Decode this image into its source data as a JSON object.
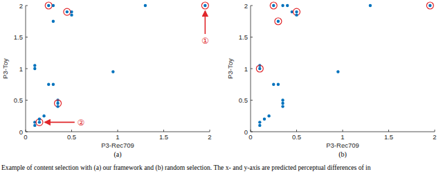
{
  "chart_data": [
    {
      "type": "scatter",
      "title": "(a)",
      "x_label": "P3-Rec709",
      "y_label": "P3-Toy",
      "x": [
        0.1,
        0.1,
        0.25,
        0.3,
        0.25,
        0.3,
        0.3,
        0.45,
        0.5,
        0.5,
        0.95,
        1.3,
        1.95,
        0.35,
        0.35,
        0.35,
        0.1,
        0.1,
        0.15,
        0.2,
        0.15
      ],
      "y": [
        1.05,
        1.0,
        0.75,
        0.75,
        2.0,
        2.0,
        1.75,
        1.9,
        1.9,
        1.85,
        0.95,
        2.0,
        2.0,
        0.5,
        0.45,
        0.4,
        0.15,
        0.1,
        0.15,
        0.25,
        0.2
      ],
      "selected": [
        false,
        false,
        false,
        false,
        true,
        false,
        false,
        true,
        false,
        false,
        false,
        false,
        true,
        false,
        true,
        false,
        false,
        false,
        true,
        false,
        false
      ],
      "color": "#0072bd",
      "marker": "dot",
      "xlim": [
        0,
        2
      ],
      "ylim": [
        0,
        2
      ],
      "xticks": [
        0,
        0.5,
        1,
        1.5,
        2
      ],
      "yticks": [
        0,
        0.5,
        1,
        1.5,
        2
      ],
      "annotations": [
        {
          "text": "①",
          "from": [
            1.95,
            1.45
          ],
          "to": [
            1.95,
            2.0
          ]
        },
        {
          "text": "②",
          "from": [
            0.6,
            0.15
          ],
          "to": [
            0.15,
            0.15
          ]
        }
      ]
    },
    {
      "type": "scatter",
      "title": "(b)",
      "x_label": "P3-Rec709",
      "y_label": "P3-Toy",
      "x": [
        0.1,
        0.1,
        0.25,
        0.3,
        0.25,
        0.35,
        0.4,
        0.3,
        0.45,
        0.5,
        0.5,
        0.95,
        1.3,
        1.95,
        0.35,
        0.35,
        0.35,
        0.1,
        0.1,
        0.15,
        0.2
      ],
      "y": [
        1.05,
        1.0,
        0.75,
        0.75,
        2.0,
        2.0,
        2.0,
        1.75,
        1.9,
        1.9,
        1.85,
        0.95,
        2.0,
        2.0,
        0.5,
        0.45,
        0.4,
        0.15,
        0.1,
        0.2,
        0.25
      ],
      "selected": [
        false,
        true,
        false,
        false,
        true,
        false,
        false,
        true,
        false,
        true,
        false,
        false,
        false,
        true,
        false,
        false,
        false,
        false,
        false,
        false,
        false
      ],
      "color": "#0072bd",
      "marker": "dot",
      "xlim": [
        0,
        2
      ],
      "ylim": [
        0,
        2
      ],
      "xticks": [
        0,
        0.5,
        1,
        1.5,
        2
      ],
      "yticks": [
        0,
        0.5,
        1,
        1.5,
        2
      ]
    }
  ],
  "caption": "Example of content selection with (a) our framework and (b) random selection. The x- and y-axis are predicted perceptual differences of in"
}
